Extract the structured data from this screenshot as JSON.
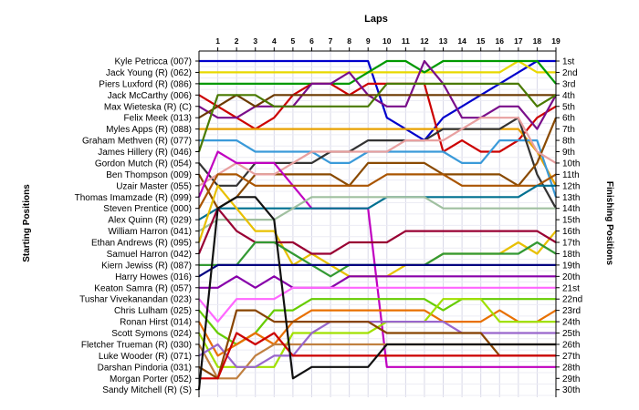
{
  "chart_data": {
    "type": "line",
    "title": "Laps",
    "ylabel_left": "Starting Positions",
    "ylabel_right": "Finishing Positions",
    "laps": [
      "1",
      "2",
      "3",
      "4",
      "5",
      "6",
      "7",
      "8",
      "9",
      "10",
      "11",
      "12",
      "13",
      "14",
      "15",
      "16",
      "17",
      "18",
      "19"
    ],
    "starting_grid": [
      "Kyle Petricca (007)",
      "Jack Young  (R) (062)",
      "Piers Luxford (R) (086)",
      "Jack McCarthy (006)",
      "Max Wieteska (R) (C)",
      "Felix Meek (013)",
      "Myles Apps  (R) (088)",
      "Graham Methven  (R) (077)",
      "James Hillery  (R) (046)",
      "Gordon Mutch  (R) (054)",
      "Ben Thompson (009)",
      "Uzair Master (055)",
      "Thomas Imamzade  (R) (099)",
      "Steven Prentice (000)",
      "Alex Quinn  (R) (029)",
      "William Harron (041)",
      "Ethan Andrews  (R) (095)",
      "Samuel Harron (042)",
      "Kiern Jewiss  (R) (087)",
      "Harry Howes (016)",
      "Keaton Samra  (R) (057)",
      "Tushar Vivekanandan (023)",
      "Chris Lulham (025)",
      "Ronan Hirst (014)",
      "Scott Symons (024)",
      "Fletcher Trueman  (R) (030)",
      "Luke Wooder  (R) (071)",
      "Darshan Pindoria (031)",
      "Morgan Porter (052)",
      "Sandy Mitchell (R) (S)"
    ],
    "finishing_labels": [
      "1st",
      "2nd",
      "3rd",
      "4th",
      "5th",
      "6th",
      "7th",
      "8th",
      "9th",
      "10th",
      "11th",
      "12th",
      "13th",
      "14th",
      "15th",
      "16th",
      "17th",
      "18th",
      "19th",
      "20th",
      "21st",
      "22nd",
      "23rd",
      "24th",
      "25th",
      "26th",
      "27th",
      "28th",
      "29th",
      "30th"
    ],
    "series": [
      {
        "start": 1,
        "color": "#0000cc",
        "positions": [
          1,
          1,
          1,
          1,
          1,
          1,
          1,
          1,
          1,
          6,
          7,
          8,
          6,
          5,
          4,
          3,
          2,
          1,
          1
        ]
      },
      {
        "start": 2,
        "color": "#e8d800",
        "positions": [
          2,
          2,
          2,
          2,
          2,
          2,
          2,
          2,
          2,
          2,
          2,
          2,
          2,
          2,
          2,
          2,
          1,
          2,
          2
        ]
      },
      {
        "start": 3,
        "color": "#009900",
        "positions": [
          3,
          3,
          3,
          3,
          3,
          3,
          3,
          3,
          2,
          1,
          1,
          2,
          1,
          1,
          1,
          1,
          1,
          1,
          3
        ]
      },
      {
        "start": 4,
        "color": "#cc0000",
        "positions": [
          5,
          6,
          7,
          6,
          4,
          3,
          3,
          4,
          3,
          3,
          3,
          3,
          9,
          8,
          9,
          9,
          8,
          6,
          5
        ]
      },
      {
        "start": 5,
        "color": "#7a0f8a",
        "positions": [
          6,
          6,
          5,
          5,
          5,
          3,
          3,
          2,
          4,
          5,
          5,
          1,
          3,
          6,
          6,
          5,
          5,
          7,
          4
        ]
      },
      {
        "start": 6,
        "color": "#6b3a00",
        "positions": [
          5,
          4,
          5,
          4,
          4,
          4,
          4,
          4,
          4,
          4,
          4,
          4,
          4,
          4,
          4,
          4,
          4,
          4,
          4
        ]
      },
      {
        "start": 7,
        "color": "#e8a000",
        "positions": [
          7,
          7,
          7,
          7,
          7,
          7,
          7,
          7,
          7,
          7,
          7,
          7,
          7,
          7,
          7,
          7,
          7,
          9,
          12
        ]
      },
      {
        "start": 8,
        "color": "#3a9ad9",
        "positions": [
          8,
          8,
          9,
          9,
          9,
          9,
          10,
          10,
          9,
          9,
          9,
          9,
          9,
          10,
          10,
          8,
          8,
          8,
          13
        ]
      },
      {
        "start": 9,
        "color": "#4a7a00",
        "positions": [
          4,
          4,
          4,
          5,
          5,
          5,
          5,
          5,
          5,
          3,
          3,
          3,
          3,
          3,
          3,
          3,
          3,
          5,
          4
        ]
      },
      {
        "start": 10,
        "color": "#333333",
        "positions": [
          12,
          12,
          10,
          10,
          10,
          10,
          9,
          9,
          8,
          8,
          8,
          8,
          7,
          7,
          7,
          7,
          6,
          11,
          14
        ]
      },
      {
        "start": 11,
        "color": "#8a4a00",
        "positions": [
          14,
          13,
          11,
          11,
          11,
          11,
          11,
          12,
          10,
          10,
          10,
          10,
          11,
          11,
          11,
          11,
          12,
          10,
          6
        ]
      },
      {
        "start": 12,
        "color": "#e8a0a0",
        "positions": [
          11,
          10,
          11,
          11,
          10,
          9,
          9,
          9,
          9,
          9,
          8,
          8,
          8,
          7,
          6,
          6,
          6,
          9,
          10
        ]
      },
      {
        "start": 13,
        "color": "#c000c0",
        "positions": [
          9,
          10,
          10,
          10,
          12,
          14,
          14,
          14,
          14,
          28,
          28,
          28,
          28,
          28,
          28,
          28,
          28,
          28,
          28
        ]
      },
      {
        "start": 14,
        "color": "#aa5500",
        "positions": [
          11,
          11,
          12,
          12,
          12,
          12,
          12,
          12,
          12,
          11,
          11,
          11,
          11,
          12,
          12,
          12,
          12,
          12,
          11
        ]
      },
      {
        "start": 15,
        "color": "#007090",
        "positions": [
          14,
          14,
          14,
          14,
          14,
          14,
          14,
          14,
          14,
          13,
          13,
          13,
          13,
          13,
          13,
          13,
          13,
          12,
          12
        ]
      },
      {
        "start": 16,
        "color": "#a0c0a0",
        "positions": [
          15,
          15,
          15,
          15,
          14,
          13,
          13,
          13,
          13,
          13,
          13,
          13,
          14,
          14,
          14,
          14,
          14,
          14,
          14
        ]
      },
      {
        "start": 17,
        "color": "#e8c000",
        "positions": [
          12,
          14,
          16,
          16,
          19,
          18,
          19,
          20,
          20,
          20,
          19,
          19,
          18,
          18,
          18,
          18,
          17,
          18,
          16
        ]
      },
      {
        "start": 18,
        "color": "#990033",
        "positions": [
          14,
          16,
          17,
          17,
          17,
          18,
          18,
          17,
          17,
          17,
          16,
          16,
          16,
          16,
          16,
          16,
          16,
          16,
          17
        ]
      },
      {
        "start": 19,
        "color": "#339933",
        "positions": [
          19,
          19,
          17,
          17,
          18,
          19,
          20,
          19,
          19,
          19,
          19,
          19,
          18,
          18,
          18,
          18,
          18,
          17,
          18
        ]
      },
      {
        "start": 20,
        "color": "#000080",
        "positions": [
          19,
          19,
          19,
          19,
          19,
          19,
          19,
          19,
          19,
          19,
          19,
          19,
          19,
          19,
          19,
          19,
          19,
          19,
          19
        ]
      },
      {
        "start": 21,
        "color": "#8800aa",
        "positions": [
          21,
          20,
          21,
          20,
          21,
          21,
          21,
          20,
          20,
          20,
          20,
          20,
          20,
          20,
          20,
          20,
          20,
          20,
          20
        ]
      },
      {
        "start": 22,
        "color": "#ff66ff",
        "positions": [
          24,
          22,
          22,
          22,
          21,
          21,
          21,
          21,
          21,
          21,
          21,
          21,
          21,
          21,
          21,
          21,
          21,
          21,
          21
        ]
      },
      {
        "start": 23,
        "color": "#66cc00",
        "positions": [
          25,
          26,
          25,
          23,
          23,
          22,
          22,
          22,
          22,
          22,
          22,
          22,
          23,
          22,
          22,
          22,
          22,
          22,
          22
        ]
      },
      {
        "start": 24,
        "color": "#e87000",
        "positions": [
          27,
          26,
          25,
          26,
          24,
          23,
          23,
          23,
          23,
          23,
          23,
          23,
          24,
          24,
          24,
          23,
          24,
          24,
          23
        ]
      },
      {
        "start": 25,
        "color": "#a0e000",
        "positions": [
          28,
          28,
          28,
          28,
          25,
          25,
          25,
          25,
          25,
          24,
          24,
          24,
          22,
          22,
          22,
          24,
          24,
          24,
          24
        ]
      },
      {
        "start": 26,
        "color": "#c08040",
        "positions": [
          29,
          29,
          27,
          26,
          26,
          26,
          26,
          26,
          26,
          26,
          26,
          26,
          26,
          26,
          26,
          26,
          26,
          26,
          26
        ]
      },
      {
        "start": 27,
        "color": "#9966cc",
        "positions": [
          26,
          28,
          28,
          27,
          27,
          25,
          24,
          24,
          24,
          24,
          24,
          24,
          24,
          25,
          25,
          25,
          25,
          25,
          25
        ]
      },
      {
        "start": 28,
        "color": "#884400",
        "positions": [
          29,
          23,
          23,
          24,
          24,
          24,
          24,
          24,
          24,
          25,
          25,
          25,
          25,
          25,
          25,
          27,
          27,
          27,
          27
        ]
      },
      {
        "start": 29,
        "color": "#cc0000",
        "positions": [
          29,
          25,
          26,
          25,
          27,
          27,
          27,
          27,
          27,
          27,
          27,
          27,
          27,
          27,
          27,
          27,
          27,
          27,
          27
        ]
      },
      {
        "start": 30,
        "color": "#111111",
        "positions": [
          14,
          13,
          13,
          15,
          29,
          28,
          28,
          28,
          28,
          26,
          26,
          26,
          26,
          26,
          26,
          26,
          26,
          26,
          26
        ]
      }
    ]
  }
}
